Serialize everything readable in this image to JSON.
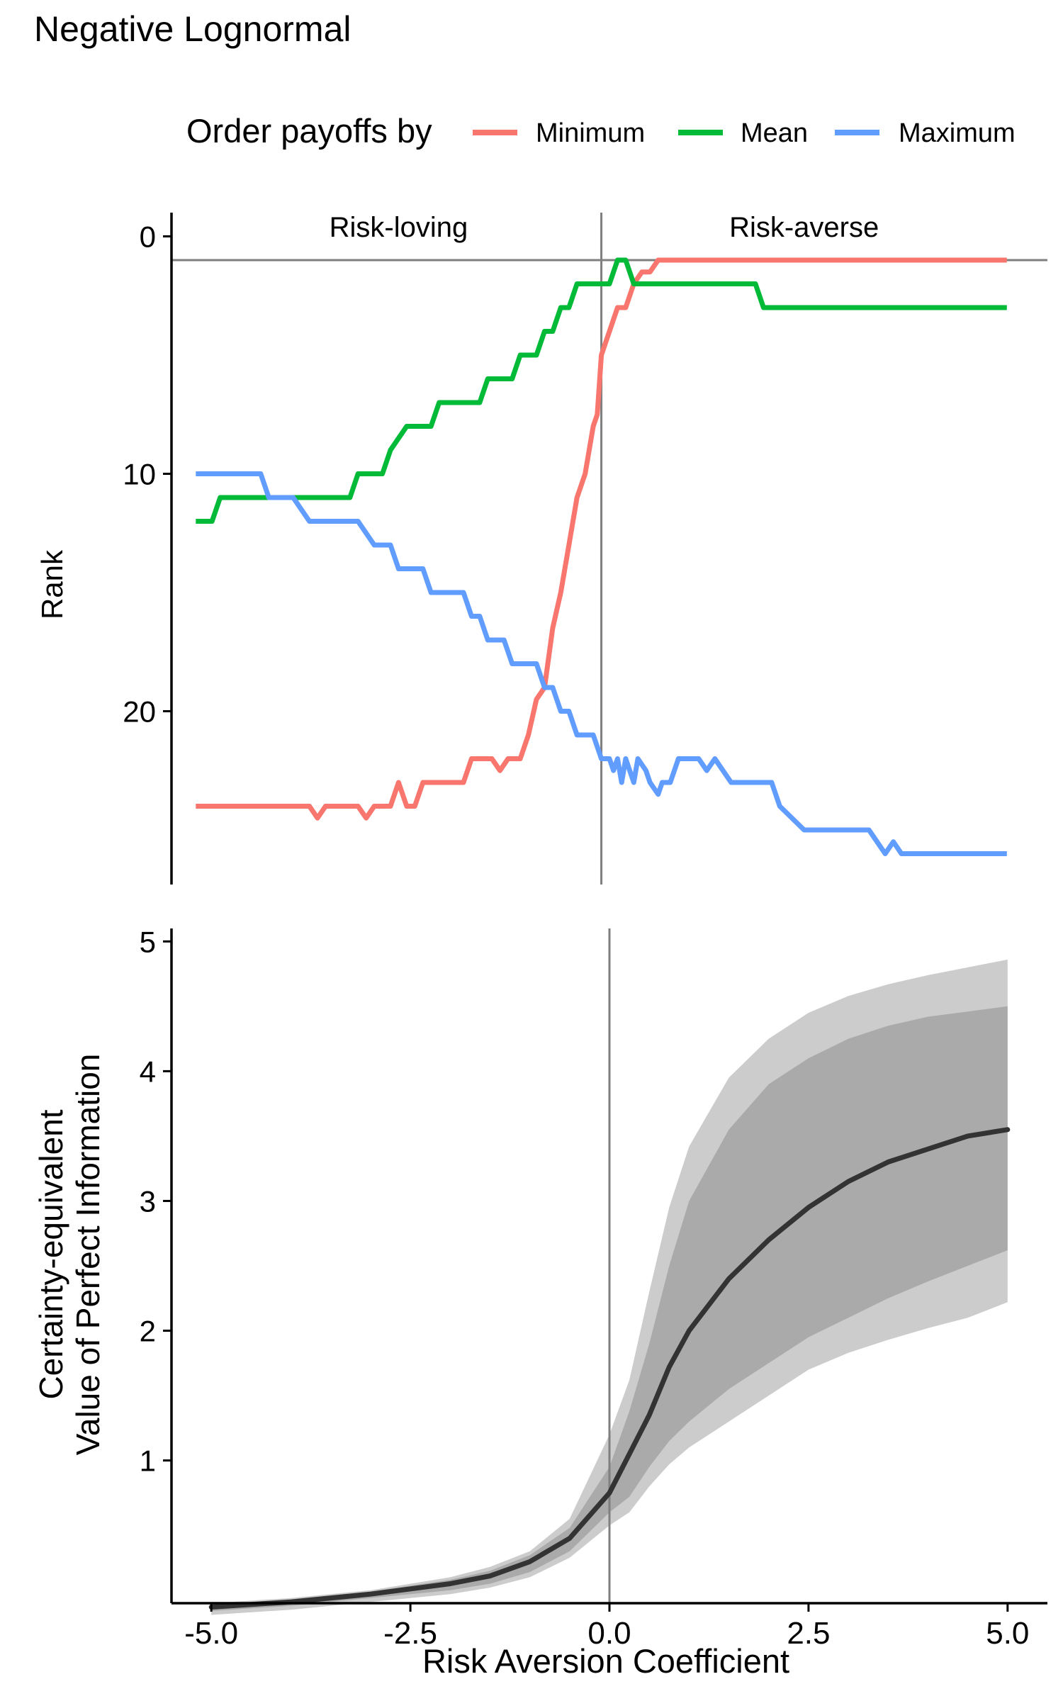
{
  "figure": {
    "title": "Negative Lognormal"
  },
  "legend": {
    "title": "Order payoffs by",
    "position": "top",
    "entries": [
      {
        "label": "Minimum",
        "color": "#F8766D"
      },
      {
        "label": "Mean",
        "color": "#00BA38"
      },
      {
        "label": "Maximum",
        "color": "#619CFF"
      }
    ]
  },
  "chart_data": [
    {
      "type": "line",
      "panel": "top",
      "ylabel": "Rank",
      "y_reversed": true,
      "xlim": [
        -5.3,
        5.5
      ],
      "ylim": [
        -1,
        27.3
      ],
      "yticks": [
        0,
        10,
        20
      ],
      "ytick_labels": [
        "0",
        "10",
        "20"
      ],
      "grid": false,
      "reference_lines": {
        "vertical_x": 0.0,
        "horizontal_y": 1
      },
      "annotations": [
        {
          "text": "Risk-loving",
          "x": -2.5,
          "y": -0.4
        },
        {
          "text": "Risk-averse",
          "x": 2.5,
          "y": -0.4
        }
      ],
      "series": [
        {
          "name": "Minimum",
          "color": "#F8766D",
          "points": [
            [
              -5.0,
              24
            ],
            [
              -3.6,
              24
            ],
            [
              -3.5,
              24.5
            ],
            [
              -3.4,
              24
            ],
            [
              -3.0,
              24
            ],
            [
              -2.9,
              24.5
            ],
            [
              -2.8,
              24
            ],
            [
              -2.6,
              24
            ],
            [
              -2.5,
              23
            ],
            [
              -2.4,
              24
            ],
            [
              -2.3,
              24
            ],
            [
              -2.2,
              23
            ],
            [
              -1.7,
              23
            ],
            [
              -1.6,
              22
            ],
            [
              -1.35,
              22
            ],
            [
              -1.25,
              22.5
            ],
            [
              -1.15,
              22
            ],
            [
              -1.0,
              22
            ],
            [
              -0.9,
              21
            ],
            [
              -0.8,
              19.5
            ],
            [
              -0.7,
              19
            ],
            [
              -0.6,
              16.5
            ],
            [
              -0.5,
              15
            ],
            [
              -0.4,
              13
            ],
            [
              -0.3,
              11
            ],
            [
              -0.2,
              10
            ],
            [
              -0.1,
              8
            ],
            [
              -0.05,
              7.5
            ],
            [
              0.0,
              5
            ],
            [
              0.1,
              4
            ],
            [
              0.2,
              3
            ],
            [
              0.3,
              3
            ],
            [
              0.4,
              2
            ],
            [
              0.5,
              1.5
            ],
            [
              0.6,
              1.5
            ],
            [
              0.7,
              1
            ],
            [
              0.8,
              1
            ],
            [
              5.0,
              1
            ]
          ]
        },
        {
          "name": "Mean",
          "color": "#00BA38",
          "points": [
            [
              -5.0,
              12
            ],
            [
              -4.8,
              12
            ],
            [
              -4.7,
              11
            ],
            [
              -3.1,
              11
            ],
            [
              -3.0,
              10
            ],
            [
              -2.7,
              10
            ],
            [
              -2.6,
              9
            ],
            [
              -2.4,
              8
            ],
            [
              -2.1,
              8
            ],
            [
              -2.0,
              7
            ],
            [
              -1.5,
              7
            ],
            [
              -1.4,
              6
            ],
            [
              -1.1,
              6
            ],
            [
              -1.0,
              5
            ],
            [
              -0.8,
              5
            ],
            [
              -0.7,
              4
            ],
            [
              -0.6,
              4
            ],
            [
              -0.5,
              3
            ],
            [
              -0.4,
              3
            ],
            [
              -0.3,
              2
            ],
            [
              0.0,
              2
            ],
            [
              0.1,
              2
            ],
            [
              0.2,
              1
            ],
            [
              0.3,
              1
            ],
            [
              0.4,
              2
            ],
            [
              1.9,
              2
            ],
            [
              2.0,
              3
            ],
            [
              5.0,
              3
            ]
          ]
        },
        {
          "name": "Maximum",
          "color": "#619CFF",
          "points": [
            [
              -5.0,
              10
            ],
            [
              -4.2,
              10
            ],
            [
              -4.1,
              11
            ],
            [
              -3.8,
              11
            ],
            [
              -3.6,
              12
            ],
            [
              -3.0,
              12
            ],
            [
              -2.8,
              13
            ],
            [
              -2.6,
              13
            ],
            [
              -2.5,
              14
            ],
            [
              -2.2,
              14
            ],
            [
              -2.1,
              15
            ],
            [
              -1.7,
              15
            ],
            [
              -1.6,
              16
            ],
            [
              -1.5,
              16
            ],
            [
              -1.4,
              17
            ],
            [
              -1.2,
              17
            ],
            [
              -1.1,
              18
            ],
            [
              -0.8,
              18
            ],
            [
              -0.7,
              19
            ],
            [
              -0.6,
              19
            ],
            [
              -0.5,
              20
            ],
            [
              -0.4,
              20
            ],
            [
              -0.3,
              21
            ],
            [
              -0.1,
              21
            ],
            [
              0.0,
              22
            ],
            [
              0.1,
              22
            ],
            [
              0.15,
              22.5
            ],
            [
              0.2,
              22
            ],
            [
              0.25,
              23
            ],
            [
              0.3,
              22
            ],
            [
              0.35,
              22.5
            ],
            [
              0.4,
              23
            ],
            [
              0.45,
              22
            ],
            [
              0.55,
              22.5
            ],
            [
              0.6,
              23
            ],
            [
              0.7,
              23.5
            ],
            [
              0.75,
              23
            ],
            [
              0.85,
              23
            ],
            [
              0.95,
              22
            ],
            [
              1.2,
              22
            ],
            [
              1.3,
              22.5
            ],
            [
              1.4,
              22
            ],
            [
              1.6,
              23
            ],
            [
              2.1,
              23
            ],
            [
              2.2,
              24
            ],
            [
              2.5,
              25
            ],
            [
              3.3,
              25
            ],
            [
              3.5,
              26
            ],
            [
              3.6,
              25.5
            ],
            [
              3.7,
              26
            ],
            [
              5.0,
              26
            ]
          ]
        }
      ]
    },
    {
      "type": "area",
      "panel": "bottom",
      "xlabel": "Risk Aversion Coefficient",
      "ylabel_lines": [
        "Certainty-equivalent",
        "Value of Perfect Information"
      ],
      "xlim": [
        -5.5,
        5.5
      ],
      "ylim": [
        -0.1,
        5.1
      ],
      "xticks": [
        -5.0,
        -2.5,
        0.0,
        2.5,
        5.0
      ],
      "xtick_labels": [
        "-5.0",
        "-2.5",
        "0.0",
        "2.5",
        "5.0"
      ],
      "yticks": [
        1,
        2,
        3,
        4,
        5
      ],
      "ytick_labels": [
        "1",
        "2",
        "3",
        "4",
        "5"
      ],
      "grid": false,
      "reference_lines": {
        "vertical_x": 0.0
      },
      "x": [
        -5.0,
        -4.0,
        -3.0,
        -2.0,
        -1.5,
        -1.0,
        -0.5,
        0.0,
        0.25,
        0.5,
        0.75,
        1.0,
        1.5,
        2.0,
        2.5,
        3.0,
        3.5,
        4.0,
        4.5,
        5.0
      ],
      "series": [
        {
          "name": "mean",
          "color": "#333333",
          "values": [
            -0.13,
            -0.09,
            -0.03,
            0.05,
            0.11,
            0.22,
            0.4,
            0.75,
            1.05,
            1.35,
            1.72,
            2.0,
            2.4,
            2.7,
            2.95,
            3.15,
            3.3,
            3.4,
            3.5,
            3.55
          ]
        },
        {
          "name": "inner_upper",
          "color": "#aaaaaa",
          "values": [
            -0.11,
            -0.07,
            -0.01,
            0.08,
            0.15,
            0.27,
            0.48,
            0.95,
            1.38,
            1.9,
            2.5,
            3.0,
            3.55,
            3.9,
            4.1,
            4.25,
            4.35,
            4.42,
            4.46,
            4.5
          ]
        },
        {
          "name": "inner_lower",
          "color": "#aaaaaa",
          "values": [
            -0.16,
            -0.12,
            -0.06,
            0.0,
            0.05,
            0.14,
            0.3,
            0.6,
            0.72,
            0.95,
            1.15,
            1.3,
            1.55,
            1.75,
            1.95,
            2.1,
            2.25,
            2.38,
            2.5,
            2.62
          ]
        },
        {
          "name": "outer_upper",
          "color": "#cccccc",
          "values": [
            -0.1,
            -0.06,
            0.0,
            0.1,
            0.18,
            0.3,
            0.55,
            1.2,
            1.62,
            2.3,
            2.95,
            3.42,
            3.95,
            4.25,
            4.45,
            4.58,
            4.67,
            4.74,
            4.8,
            4.86
          ]
        },
        {
          "name": "outer_lower",
          "color": "#cccccc",
          "values": [
            -0.19,
            -0.15,
            -0.09,
            -0.03,
            0.02,
            0.1,
            0.25,
            0.5,
            0.6,
            0.8,
            0.97,
            1.1,
            1.3,
            1.5,
            1.7,
            1.83,
            1.93,
            2.02,
            2.1,
            2.22
          ]
        }
      ]
    }
  ]
}
